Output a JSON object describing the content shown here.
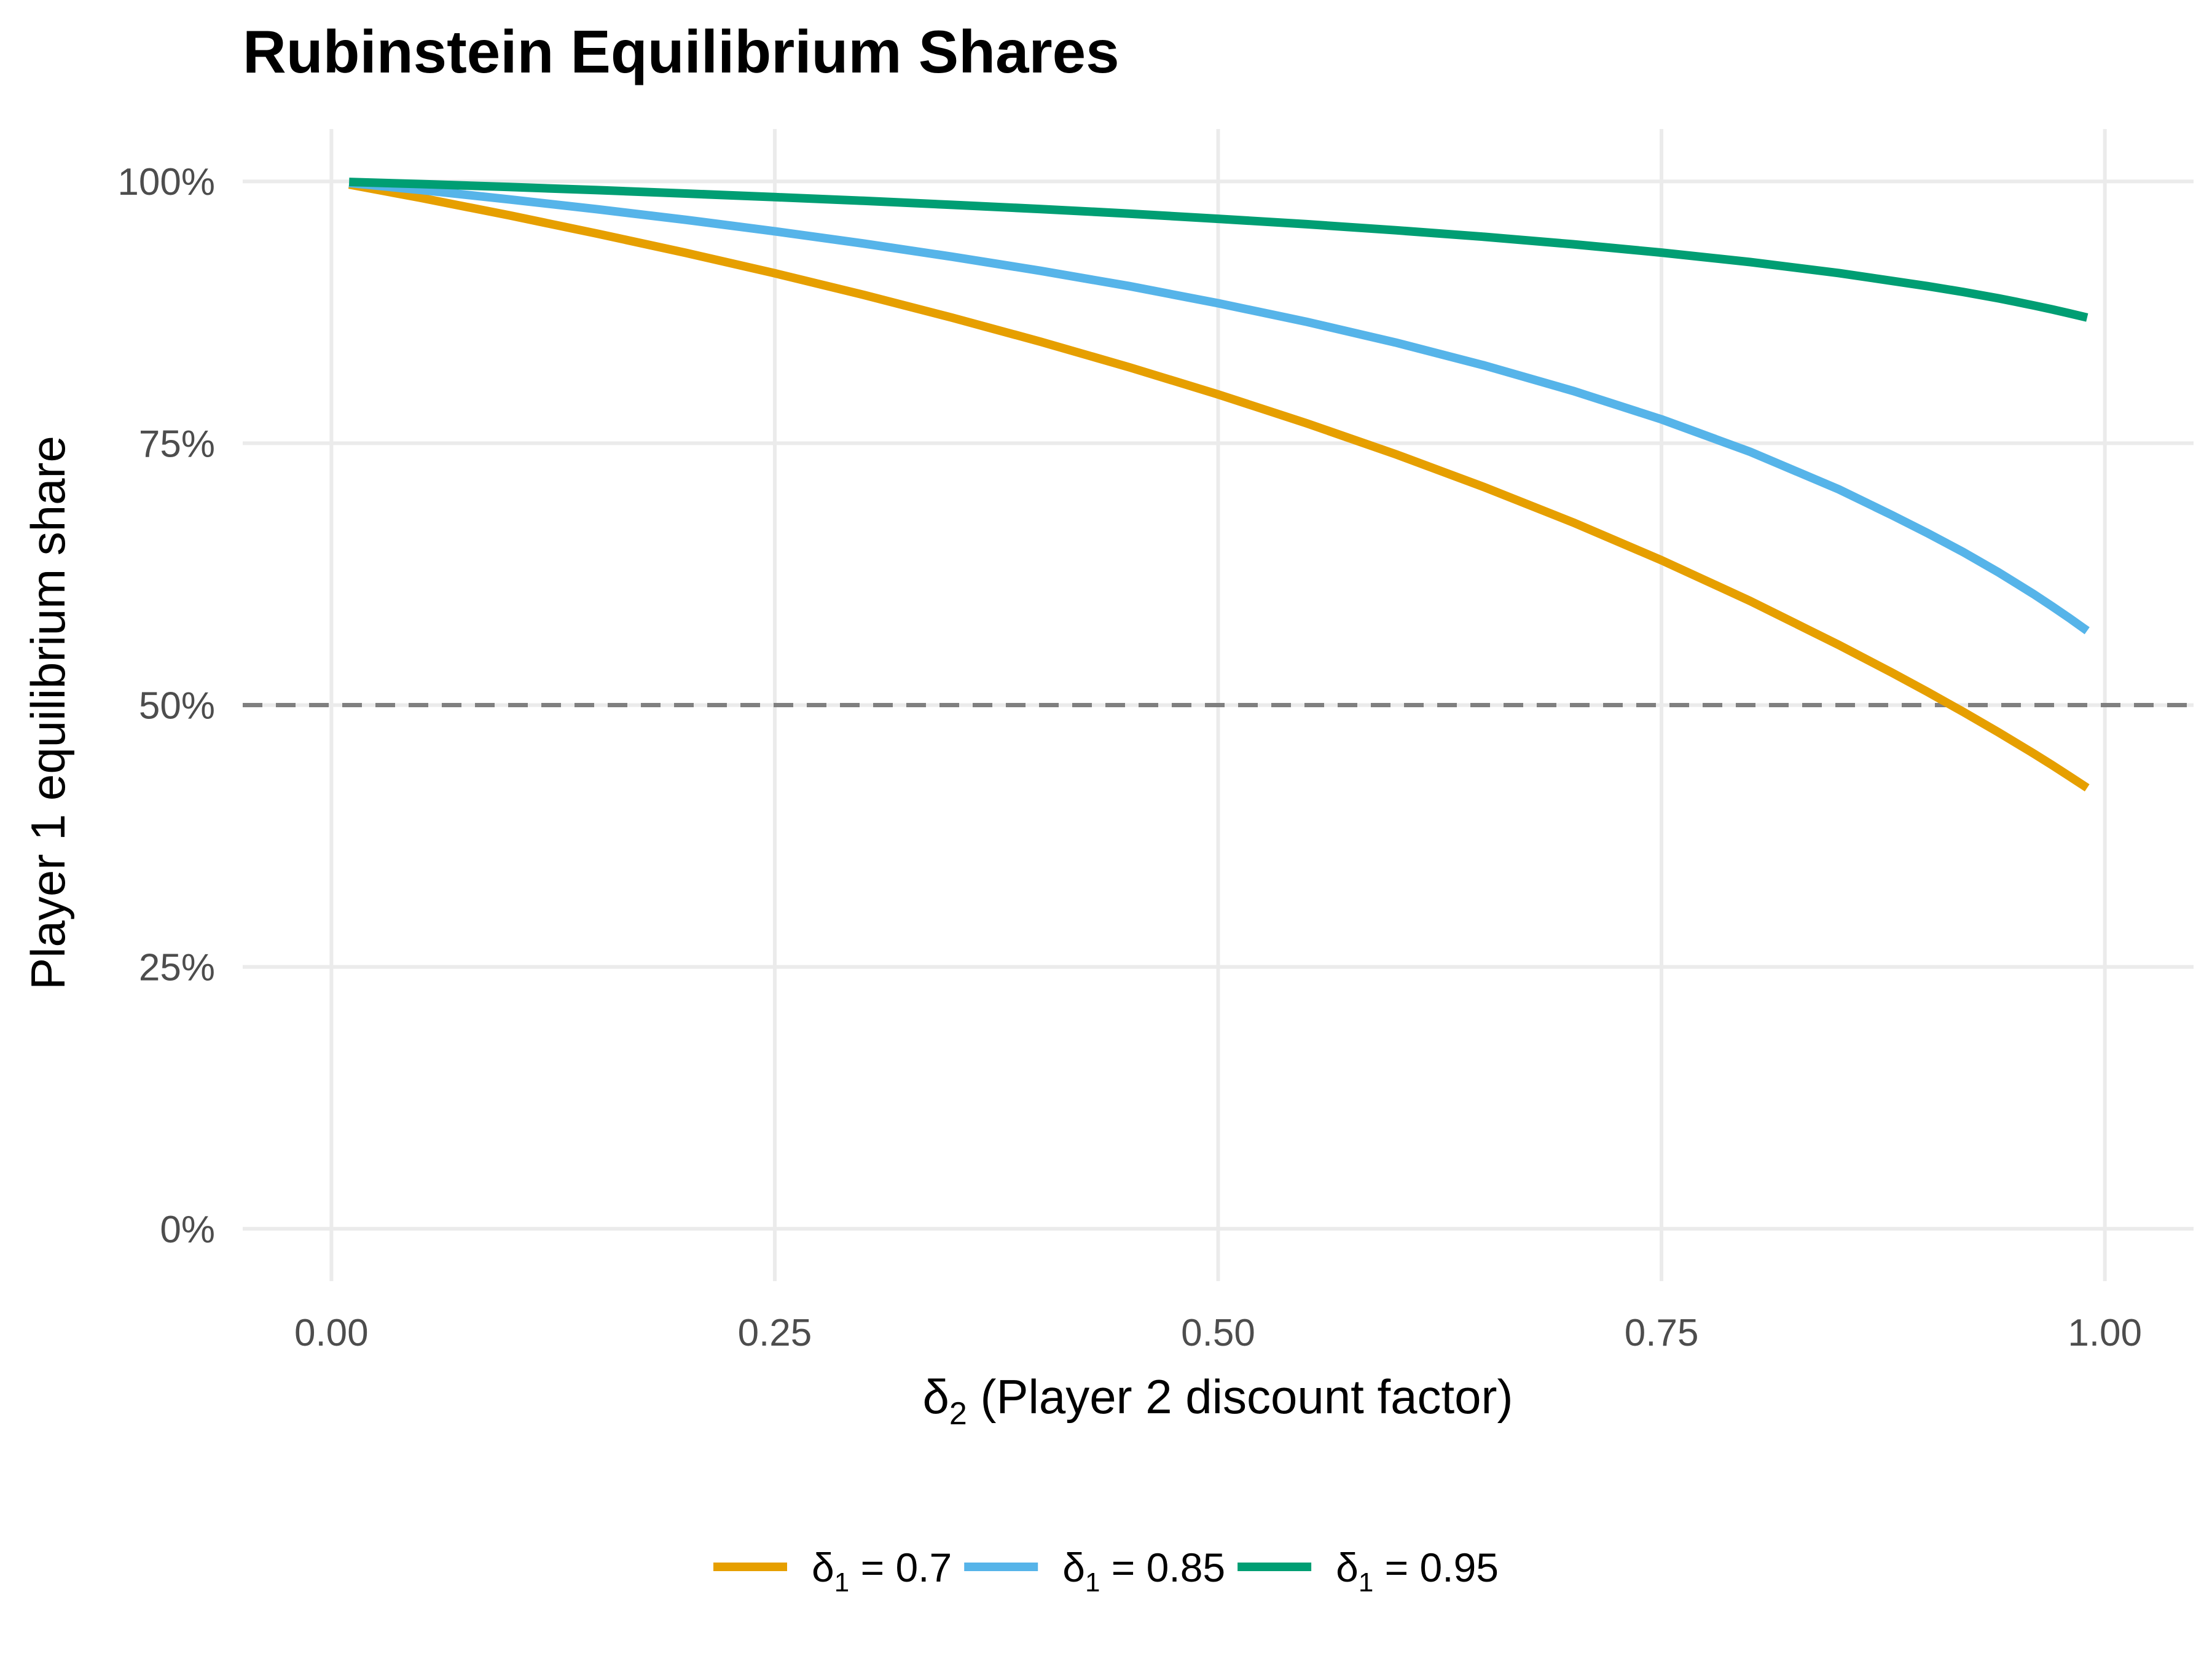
{
  "chart_data": {
    "type": "line",
    "title": "Rubinstein Equilibrium Shares",
    "xlabel_symbol": "δ",
    "xlabel_subscript": "2",
    "xlabel_text": " (Player 2 discount factor)",
    "ylabel": "Player 1 equilibrium share",
    "xlim": [
      -0.05,
      1.05
    ],
    "ylim": [
      -0.05,
      1.05
    ],
    "x_ticks": [
      0,
      0.25,
      0.5,
      0.75,
      1.0
    ],
    "x_tick_labels": [
      "0.00",
      "0.25",
      "0.50",
      "0.75",
      "1.00"
    ],
    "y_ticks": [
      0,
      0.25,
      0.5,
      0.75,
      1.0
    ],
    "y_tick_labels": [
      "0%",
      "25%",
      "50%",
      "75%",
      "100%"
    ],
    "grid": true,
    "reference_line": {
      "y": 0.5,
      "style": "dashed",
      "color": "#7f7f7f"
    },
    "legend_position": "bottom",
    "x": [
      0.01,
      0.05,
      0.1,
      0.15,
      0.2,
      0.25,
      0.3,
      0.35,
      0.4,
      0.45,
      0.5,
      0.55,
      0.6,
      0.65,
      0.7,
      0.75,
      0.8,
      0.85,
      0.88,
      0.9,
      0.92,
      0.94,
      0.95,
      0.96,
      0.97,
      0.98,
      0.99
    ],
    "series": [
      {
        "symbol": "δ",
        "subscript": "1",
        "value_text": " = 0.7",
        "color": "#E69F00",
        "values": [
          0.997,
          0.9844,
          0.9677,
          0.9501,
          0.9317,
          0.9123,
          0.8917,
          0.8699,
          0.8469,
          0.8225,
          0.7966,
          0.769,
          0.7396,
          0.7081,
          0.6745,
          0.6383,
          0.5994,
          0.5574,
          0.5309,
          0.5126,
          0.4936,
          0.474,
          0.4638,
          0.4536,
          0.443,
          0.432,
          0.421
        ]
      },
      {
        "symbol": "δ",
        "subscript": "1",
        "value_text": " = 0.85",
        "color": "#56B4E9",
        "values": [
          0.9985,
          0.9919,
          0.9829,
          0.9734,
          0.9633,
          0.9524,
          0.9407,
          0.9281,
          0.9146,
          0.9,
          0.8837,
          0.8659,
          0.8462,
          0.8243,
          0.8,
          0.7728,
          0.7418,
          0.706,
          0.6813,
          0.6642,
          0.6462,
          0.6268,
          0.6163,
          0.6058,
          0.5946,
          0.583,
          0.571
        ]
      },
      {
        "symbol": "δ",
        "subscript": "1",
        "value_text": " = 0.95",
        "color": "#009E73",
        "values": [
          0.9995,
          0.9975,
          0.9947,
          0.9917,
          0.9884,
          0.985,
          0.9815,
          0.9776,
          0.9736,
          0.9692,
          0.9643,
          0.9591,
          0.9534,
          0.9471,
          0.94,
          0.932,
          0.923,
          0.9125,
          0.905,
          0.9,
          0.8945,
          0.8884,
          0.885,
          0.8815,
          0.8779,
          0.874,
          0.87
        ]
      }
    ]
  }
}
